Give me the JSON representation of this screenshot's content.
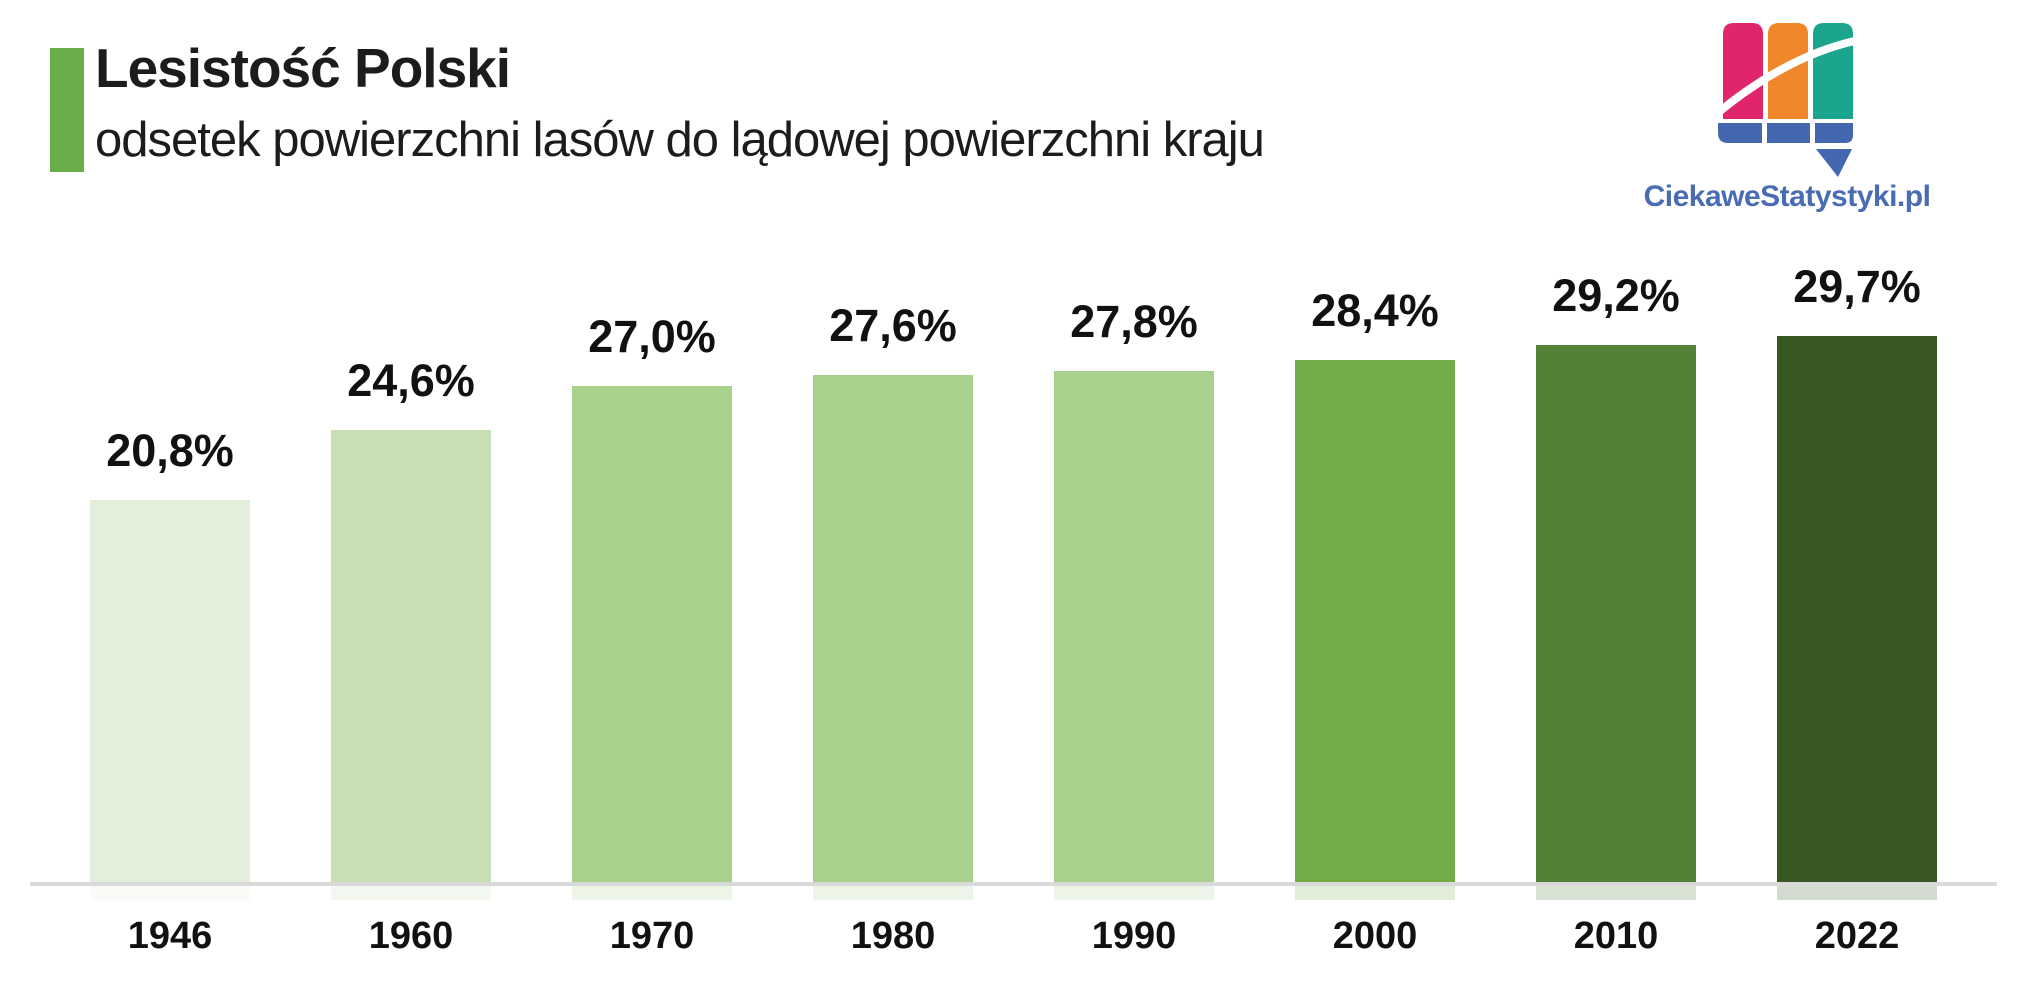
{
  "page": {
    "background": "#ffffff"
  },
  "header": {
    "title": "Lesistość Polski",
    "subtitle": "odsetek powierzchni lasów do lądowej powierzchni kraju",
    "accent_color": "#6aae4a",
    "text_color": "#1c1c1c"
  },
  "logo": {
    "site_name": "CiekaweStatystyki.pl",
    "text_color": "#4a6cb3",
    "icon_colors": {
      "pink": "#e0256d",
      "orange": "#f0882b",
      "teal": "#1aa58c",
      "blue": "#4468b0",
      "swoosh": "#ffffff"
    }
  },
  "chart_data": {
    "type": "bar",
    "title": "Lesistość Polski",
    "subtitle": "odsetek powierzchni lasów do lądowej powierzchni kraju",
    "categories": [
      "1946",
      "1960",
      "1970",
      "1980",
      "1990",
      "2000",
      "2010",
      "2022"
    ],
    "values": [
      20.8,
      24.6,
      27.0,
      27.6,
      27.8,
      28.4,
      29.2,
      29.7
    ],
    "value_labels": [
      "20,8%",
      "24,6%",
      "27,0%",
      "27,6%",
      "27,8%",
      "28,4%",
      "29,2%",
      "29,7%"
    ],
    "bar_colors": [
      "#e2efda",
      "#c6e0b4",
      "#a9d18e",
      "#a9d18e",
      "#a9d18e",
      "#70ad47",
      "#538135",
      "#385723"
    ],
    "unit": "%",
    "ylim": [
      0,
      33
    ],
    "grid": false,
    "legend": null,
    "value_labels_position": "above-bars",
    "baseline_color": "#d9d9d9",
    "label_color": "#111111"
  }
}
